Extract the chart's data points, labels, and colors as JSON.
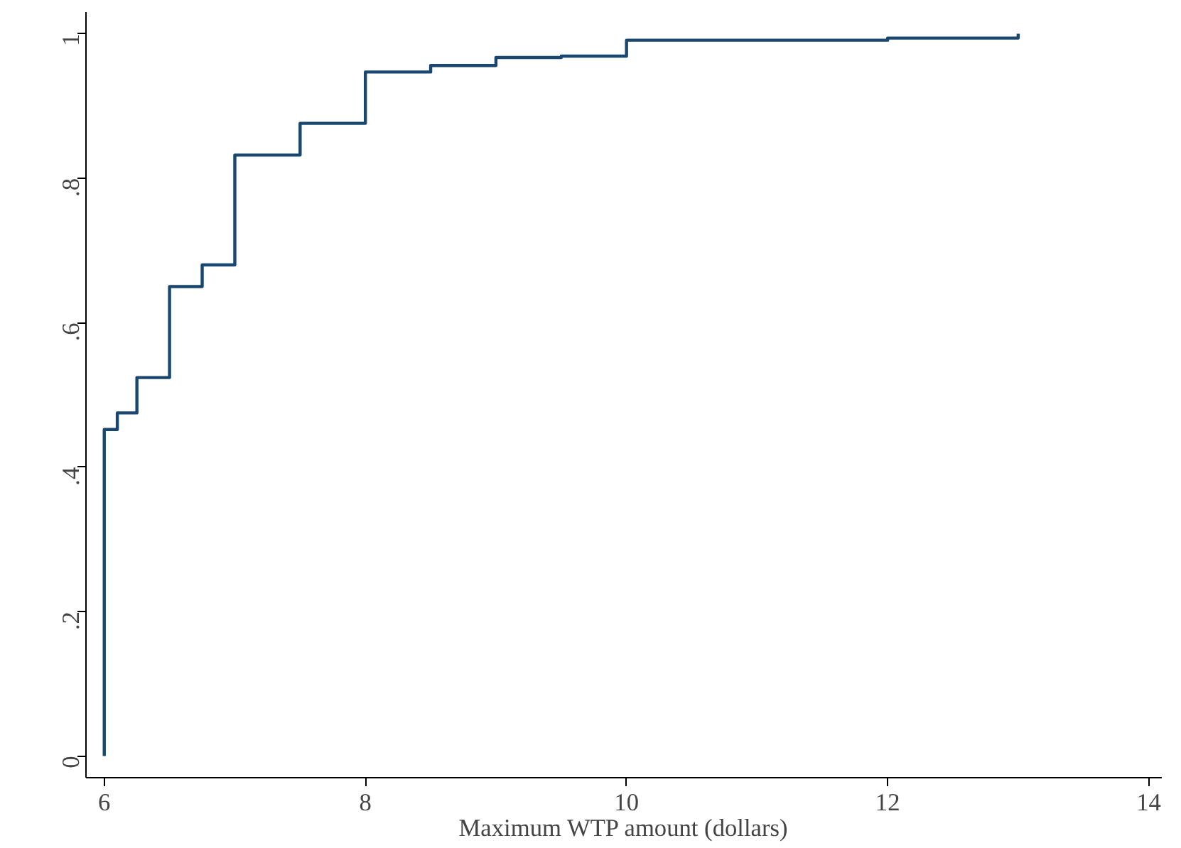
{
  "chart_data": {
    "type": "step",
    "xlabel": "Maximum WTP amount (dollars)",
    "x": [
      6,
      6,
      6.1,
      6.25,
      6.5,
      6.75,
      7,
      7.5,
      8,
      8.5,
      9,
      9.5,
      10,
      12,
      13
    ],
    "series": [
      {
        "color": "#1a476f",
        "values": [
          0,
          0.452,
          0.475,
          0.524,
          0.65,
          0.68,
          0.832,
          0.876,
          0.947,
          0.956,
          0.967,
          0.969,
          0.991,
          0.994,
          1
        ]
      }
    ],
    "xlim": [
      5.86,
      14.1
    ],
    "ylim": [
      -0.03,
      1.03
    ],
    "xticks": [
      6,
      8,
      10,
      12,
      14
    ],
    "yticks": [
      0,
      {
        "value": 0.2,
        "label": ".2"
      },
      {
        "value": 0.4,
        "label": ".4"
      },
      {
        "value": 0.6,
        "label": ".6"
      },
      {
        "value": 0.8,
        "label": ".8"
      },
      1
    ],
    "grid": false,
    "line_style": "solid",
    "marker": "none"
  }
}
